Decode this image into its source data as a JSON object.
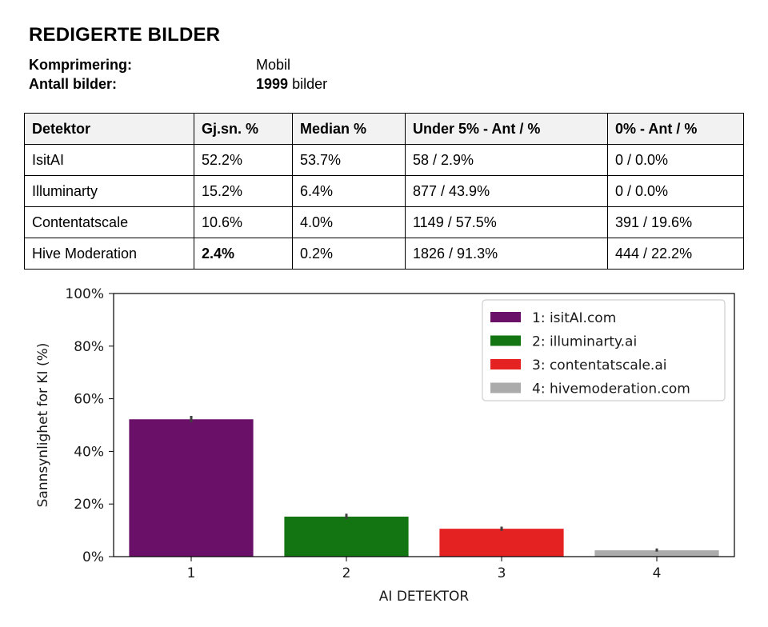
{
  "header": {
    "title": "REDIGERTE BILDER",
    "compression_label": "Komprimering:",
    "compression_value": "Mobil",
    "count_label": "Antall bilder:",
    "count_value": "1999",
    "count_unit": "bilder"
  },
  "table": {
    "columns": [
      "Detektor",
      "Gj.sn. %",
      "Median %",
      "Under 5% - Ant / %",
      "0% - Ant / %"
    ],
    "rows": [
      [
        "IsitAI",
        "52.2%",
        "53.7%",
        "58 / 2.9%",
        "0 / 0.0%"
      ],
      [
        "Illuminarty",
        "15.2%",
        "6.4%",
        "877 / 43.9%",
        "0 / 0.0%"
      ],
      [
        "Contentatscale",
        "10.6%",
        "4.0%",
        "1149 / 57.5%",
        "391 / 19.6%"
      ],
      [
        "Hive Moderation",
        "2.4%",
        "0.2%",
        "1826 / 91.3%",
        "444 / 22.2%"
      ]
    ],
    "bold_cell": "Hive Moderation mean"
  },
  "chart_data": {
    "type": "bar",
    "categories": [
      "1",
      "2",
      "3",
      "4"
    ],
    "values": [
      52.2,
      15.2,
      10.6,
      2.4
    ],
    "error_low": [
      51.0,
      14.3,
      9.8,
      1.9
    ],
    "error_high": [
      53.5,
      16.3,
      11.4,
      3.1
    ],
    "colors": [
      "#6b1069",
      "#127512",
      "#e52222",
      "#ababab"
    ],
    "xlabel": "AI DETEKTOR",
    "ylabel": "Sannsynlighet for KI (%)",
    "ylim": [
      0,
      100
    ],
    "yticks": [
      "0%",
      "20%",
      "40%",
      "60%",
      "80%",
      "100%"
    ],
    "ytick_values": [
      0,
      20,
      40,
      60,
      80,
      100
    ],
    "legend": [
      "1: isitAI.com",
      "2: illuminarty.ai",
      "3: contentatscale.ai",
      "4: hivemoderation.com"
    ],
    "legend_position": "top-right",
    "grid": false
  }
}
